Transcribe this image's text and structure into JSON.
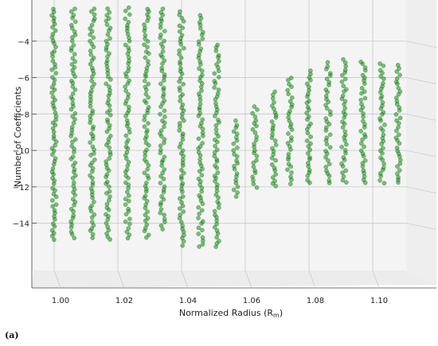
{
  "caption": "(a)",
  "chart_data": {
    "type": "scatter",
    "projection": "3d-view",
    "xlabel": "Normalized Radius (R",
    "xlabel_sub": "m",
    "xlabel_close": ")",
    "ylabel": "Number of Coefficients",
    "x_ticks": [
      "1.00",
      "1.02",
      "1.04",
      "1.06",
      "1.08",
      "1.10"
    ],
    "y_ticks": [
      "−4",
      "−6",
      "−8",
      "−10",
      "−12",
      "−14"
    ],
    "xlim": [
      0.998,
      1.11
    ],
    "ylim": [
      -15.5,
      -2.0
    ],
    "grid": true,
    "marker_color": "#1a8a1a",
    "columns": [
      {
        "x": 1.0,
        "ymin": -14.9,
        "ymax": -2.2
      },
      {
        "x": 1.006,
        "ymin": -14.8,
        "ymax": -2.2
      },
      {
        "x": 1.012,
        "ymin": -14.8,
        "ymax": -2.2
      },
      {
        "x": 1.017,
        "ymin": -14.9,
        "ymax": -2.2
      },
      {
        "x": 1.023,
        "ymin": -14.8,
        "ymax": -2.2
      },
      {
        "x": 1.029,
        "ymin": -14.8,
        "ymax": -2.2
      },
      {
        "x": 1.034,
        "ymin": -14.3,
        "ymax": -2.2
      },
      {
        "x": 1.04,
        "ymin": -15.2,
        "ymax": -2.4
      },
      {
        "x": 1.046,
        "ymin": -15.3,
        "ymax": -2.6
      },
      {
        "x": 1.051,
        "ymin": -15.3,
        "ymax": -4.2
      },
      {
        "x": 1.057,
        "ymin": -12.5,
        "ymax": -8.4
      },
      {
        "x": 1.063,
        "ymin": -12.0,
        "ymax": -7.6
      },
      {
        "x": 1.069,
        "ymin": -12.0,
        "ymax": -6.8
      },
      {
        "x": 1.074,
        "ymin": -11.8,
        "ymax": -6.0
      },
      {
        "x": 1.08,
        "ymin": -11.8,
        "ymax": -5.6
      },
      {
        "x": 1.086,
        "ymin": -11.8,
        "ymax": -5.2
      },
      {
        "x": 1.091,
        "ymin": -11.8,
        "ymax": -5.0
      },
      {
        "x": 1.097,
        "ymin": -11.8,
        "ymax": -5.1
      },
      {
        "x": 1.103,
        "ymin": -11.8,
        "ymax": -5.2
      },
      {
        "x": 1.108,
        "ymin": -11.8,
        "ymax": -5.3
      }
    ]
  }
}
